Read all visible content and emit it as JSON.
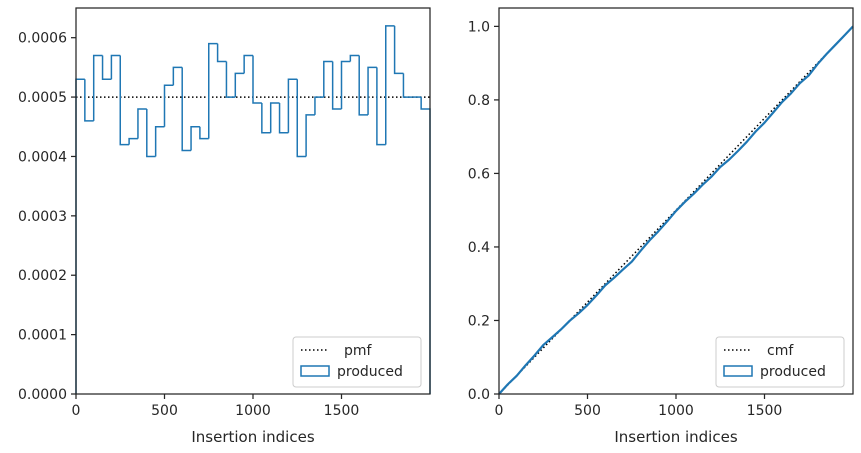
{
  "colors": {
    "produced": "#1f77b4",
    "reference": "#000000"
  },
  "chart_data": [
    {
      "type": "histogram",
      "xlabel": "Insertion indices",
      "ylabel": "",
      "xlim": [
        0,
        2000
      ],
      "ylim": [
        0,
        0.00065
      ],
      "x_ticks": [
        0,
        500,
        1000,
        1500
      ],
      "y_ticks": [
        0,
        0.0001,
        0.0002,
        0.0003,
        0.0004,
        0.0005,
        0.0006
      ],
      "x_tick_labels": [
        "0",
        "500",
        "1000",
        "1500"
      ],
      "y_tick_labels": [
        "0.0000",
        "0.0001",
        "0.0002",
        "0.0003",
        "0.0004",
        "0.0005",
        "0.0006"
      ],
      "bin_edges": [
        0,
        50,
        100,
        150,
        200,
        250,
        300,
        350,
        400,
        450,
        500,
        550,
        600,
        650,
        700,
        750,
        800,
        850,
        900,
        950,
        1000,
        1050,
        1100,
        1150,
        1200,
        1250,
        1300,
        1350,
        1400,
        1450,
        1500,
        1550,
        1600,
        1650,
        1700,
        1750,
        1800,
        1850,
        1900,
        1950,
        2000
      ],
      "series": [
        {
          "name": "produced",
          "style": "step",
          "values": [
            0.00053,
            0.00046,
            0.00057,
            0.00053,
            0.00057,
            0.00042,
            0.00043,
            0.00048,
            0.0004,
            0.00045,
            0.00052,
            0.00055,
            0.00041,
            0.00045,
            0.00043,
            0.00059,
            0.00056,
            0.0005,
            0.00054,
            0.00057,
            0.00049,
            0.00044,
            0.00049,
            0.00044,
            0.00053,
            0.0004,
            0.00047,
            0.0005,
            0.00056,
            0.00048,
            0.00056,
            0.00057,
            0.00047,
            0.00055,
            0.00042,
            0.00062,
            0.00054,
            0.0005,
            0.0005,
            0.00048
          ]
        },
        {
          "name": "pmf",
          "style": "dotted",
          "value": 0.0005
        }
      ],
      "legend": {
        "position": "lower right",
        "entries": [
          "pmf",
          "produced"
        ]
      }
    },
    {
      "type": "line",
      "xlabel": "Insertion indices",
      "ylabel": "",
      "xlim": [
        0,
        2000
      ],
      "ylim": [
        0,
        1.05
      ],
      "x_ticks": [
        0,
        500,
        1000,
        1500
      ],
      "y_ticks": [
        0,
        0.2,
        0.4,
        0.6,
        0.8,
        1.0
      ],
      "x_tick_labels": [
        "0",
        "500",
        "1000",
        "1500"
      ],
      "y_tick_labels": [
        "0.0",
        "0.2",
        "0.4",
        "0.6",
        "0.8",
        "1.0"
      ],
      "series": [
        {
          "name": "cmf",
          "style": "dotted",
          "x": [
            0,
            2000
          ],
          "y": [
            0,
            1.0
          ]
        },
        {
          "name": "produced",
          "style": "solid",
          "x": [
            0,
            50,
            100,
            150,
            200,
            250,
            300,
            350,
            400,
            450,
            500,
            550,
            600,
            650,
            700,
            750,
            800,
            850,
            900,
            950,
            1000,
            1050,
            1100,
            1150,
            1200,
            1250,
            1300,
            1350,
            1400,
            1450,
            1500,
            1550,
            1600,
            1650,
            1700,
            1750,
            1800,
            1850,
            1900,
            1950,
            2000
          ],
          "y": [
            0,
            0.0265,
            0.0495,
            0.078,
            0.1045,
            0.133,
            0.154,
            0.1755,
            0.1995,
            0.2195,
            0.242,
            0.268,
            0.2955,
            0.316,
            0.3385,
            0.36,
            0.3895,
            0.4175,
            0.4425,
            0.4695,
            0.498,
            0.5225,
            0.5445,
            0.569,
            0.591,
            0.6175,
            0.6375,
            0.661,
            0.686,
            0.714,
            0.738,
            0.766,
            0.7945,
            0.818,
            0.8455,
            0.8665,
            0.8975,
            0.9245,
            0.9495,
            0.9745,
            1.0
          ]
        }
      ],
      "legend": {
        "position": "lower right",
        "entries": [
          "cmf",
          "produced"
        ]
      }
    }
  ]
}
